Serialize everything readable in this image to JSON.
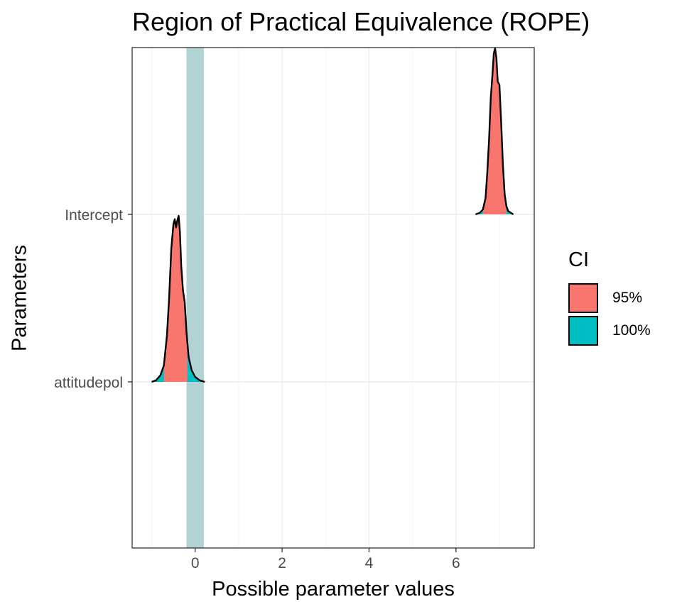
{
  "chart_data": {
    "type": "area",
    "title": "Region of Practical Equivalence (ROPE)",
    "xlabel": "Possible parameter values",
    "ylabel": "Parameters",
    "xlim": [
      -1.45,
      7.8
    ],
    "xticks": [
      0,
      2,
      4,
      6
    ],
    "parameters": [
      "Intercept",
      "attitudepol"
    ],
    "rope": [
      -0.2,
      0.2
    ],
    "rope_color": "#b1d3d4",
    "grid": true,
    "legend": {
      "title": "CI",
      "position": "right",
      "items": [
        {
          "label": "95%",
          "color": "#f8766d"
        },
        {
          "label": "100%",
          "color": "#00bfc4"
        }
      ]
    },
    "distributions": [
      {
        "parameter": "Intercept",
        "x": [
          6.45,
          6.55,
          6.62,
          6.68,
          6.72,
          6.76,
          6.8,
          6.84,
          6.87,
          6.9,
          6.93,
          6.96,
          7.0,
          7.04,
          7.08,
          7.12,
          7.16,
          7.2,
          7.26,
          7.32
        ],
        "density": [
          0.0,
          0.01,
          0.03,
          0.1,
          0.25,
          0.45,
          0.7,
          0.85,
          0.97,
          1.0,
          0.94,
          0.8,
          0.78,
          0.55,
          0.3,
          0.12,
          0.05,
          0.02,
          0.01,
          0.0
        ],
        "ci95": [
          6.62,
          7.16
        ]
      },
      {
        "parameter": "attitudepol",
        "x": [
          -1.0,
          -0.9,
          -0.8,
          -0.72,
          -0.65,
          -0.6,
          -0.55,
          -0.5,
          -0.47,
          -0.44,
          -0.41,
          -0.38,
          -0.35,
          -0.32,
          -0.28,
          -0.24,
          -0.2,
          -0.15,
          -0.08,
          0.0,
          0.1,
          0.22
        ],
        "density": [
          0.0,
          0.01,
          0.04,
          0.1,
          0.28,
          0.5,
          0.8,
          0.95,
          0.98,
          0.93,
          0.97,
          1.0,
          0.9,
          0.7,
          0.55,
          0.48,
          0.3,
          0.15,
          0.07,
          0.03,
          0.01,
          0.0
        ],
        "ci95": [
          -0.72,
          -0.18
        ]
      }
    ]
  }
}
